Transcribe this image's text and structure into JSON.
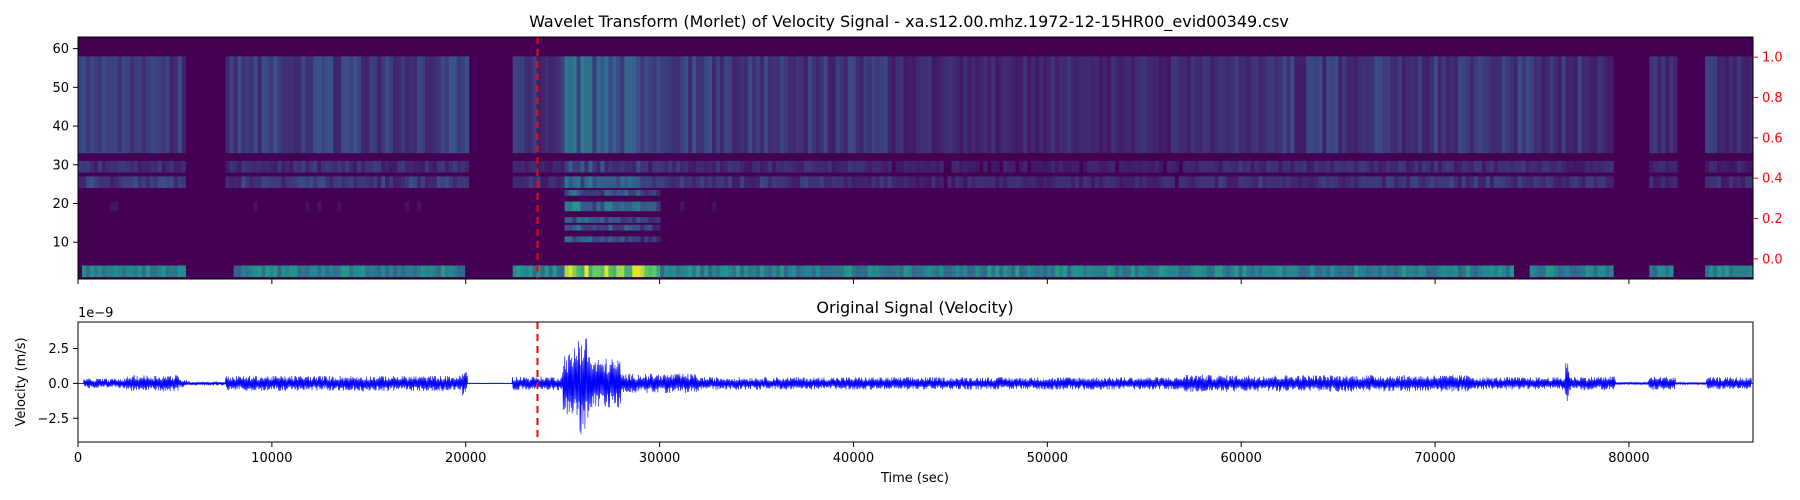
{
  "colors": {
    "background": "#440154",
    "heat_low": "#46337e",
    "heat_mid": "#21918c",
    "heat_high": "#fde725",
    "signal": "#0000ff",
    "event_line": "#ff0000",
    "right_axis": "#ff0000",
    "axis": "#000000"
  },
  "chart_data": [
    {
      "type": "heatmap",
      "title": "Wavelet Transform (Morlet) of Velocity Signal - xa.s12.00.mhz.1972-12-15HR00_evid00349.csv",
      "xlim": [
        0,
        86400
      ],
      "ylim": [
        0.5,
        63
      ],
      "yticks": [
        "10",
        "20",
        "30",
        "40",
        "50",
        "60"
      ],
      "ytick_values": [
        10,
        20,
        30,
        40,
        50,
        60
      ],
      "right_ylim": [
        -0.1,
        1.1
      ],
      "right_yticks": [
        "0.0",
        "0.2",
        "0.4",
        "0.6",
        "0.8",
        "1.0"
      ],
      "right_ytick_values": [
        0.0,
        0.2,
        0.4,
        0.6,
        0.8,
        1.0
      ],
      "colormap": "viridis",
      "event_time": 23700,
      "scale_bands": [
        {
          "low": 1,
          "high": 4,
          "weight": 0.45
        },
        {
          "low": 10,
          "high": 11.5,
          "weight": 0.12
        },
        {
          "low": 13,
          "high": 14.5,
          "weight": 0.14
        },
        {
          "low": 15,
          "high": 16.5,
          "weight": 0.14
        },
        {
          "low": 18,
          "high": 20.5,
          "weight": 0.18
        },
        {
          "low": 22,
          "high": 23.5,
          "weight": 0.14
        },
        {
          "low": 24,
          "high": 27,
          "weight": 0.3
        },
        {
          "low": 28,
          "high": 31,
          "weight": 0.24
        },
        {
          "low": 33,
          "high": 58,
          "weight": 0.32
        }
      ],
      "activity": [
        {
          "t0": 0,
          "t1": 5600,
          "level": 0.55
        },
        {
          "t0": 5600,
          "t1": 7600,
          "level": 0.1
        },
        {
          "t0": 7600,
          "t1": 20100,
          "level": 0.55
        },
        {
          "t0": 20100,
          "t1": 22400,
          "level": 0.03
        },
        {
          "t0": 22400,
          "t1": 25000,
          "level": 0.45
        },
        {
          "t0": 25000,
          "t1": 26500,
          "level": 1.0
        },
        {
          "t0": 26500,
          "t1": 29000,
          "level": 0.8
        },
        {
          "t0": 29000,
          "t1": 33000,
          "level": 0.55
        },
        {
          "t0": 33000,
          "t1": 42000,
          "level": 0.5
        },
        {
          "t0": 42000,
          "t1": 57900,
          "level": 0.35
        },
        {
          "t0": 57900,
          "t1": 74800,
          "level": 0.5
        },
        {
          "t0": 74800,
          "t1": 79300,
          "level": 0.45
        },
        {
          "t0": 79300,
          "t1": 81000,
          "level": 0.05
        },
        {
          "t0": 81000,
          "t1": 82500,
          "level": 0.4
        },
        {
          "t0": 82500,
          "t1": 83900,
          "level": 0.05
        },
        {
          "t0": 83900,
          "t1": 86400,
          "level": 0.45
        }
      ],
      "low_scale_active": [
        [
          300,
          5600
        ],
        [
          8000,
          20000
        ],
        [
          22400,
          33000
        ],
        [
          33000,
          42000
        ],
        [
          40800,
          48300
        ],
        [
          48300,
          58000
        ],
        [
          58000,
          74000
        ],
        [
          74800,
          79200
        ],
        [
          81000,
          82300
        ],
        [
          84000,
          86400
        ]
      ],
      "mid_scale_only_event": [
        25000,
        30000
      ]
    },
    {
      "type": "line",
      "title": "Original Signal (Velocity)",
      "xlabel": "Time (sec)",
      "ylabel": "Velocity (m/s)",
      "offset_label": "1e−9",
      "xlim": [
        0,
        86400
      ],
      "ylim": [
        -4.2,
        4.4
      ],
      "xticks": [
        "0",
        "10000",
        "20000",
        "30000",
        "40000",
        "50000",
        "60000",
        "70000",
        "80000"
      ],
      "xtick_values": [
        0,
        10000,
        20000,
        30000,
        40000,
        50000,
        60000,
        70000,
        80000
      ],
      "yticks": [
        "−2.5",
        "0.0",
        "2.5"
      ],
      "ytick_values": [
        -2.5,
        0.0,
        2.5
      ],
      "event_time": 23700,
      "envelope": [
        {
          "t0": 300,
          "t1": 2500,
          "amp": 0.35
        },
        {
          "t0": 2500,
          "t1": 5200,
          "amp": 0.6
        },
        {
          "t0": 5200,
          "t1": 5600,
          "amp": 0.3
        },
        {
          "t0": 5600,
          "t1": 7600,
          "amp": 0.15
        },
        {
          "t0": 7600,
          "t1": 15800,
          "amp": 0.55
        },
        {
          "t0": 15800,
          "t1": 19800,
          "amp": 0.55
        },
        {
          "t0": 19800,
          "t1": 20100,
          "amp": 0.9
        },
        {
          "t0": 20100,
          "t1": 22400,
          "amp": 0.03
        },
        {
          "t0": 22400,
          "t1": 25000,
          "amp": 0.5
        },
        {
          "t0": 25000,
          "t1": 25600,
          "amp": 2.2
        },
        {
          "t0": 25600,
          "t1": 26400,
          "amp": 3.8
        },
        {
          "t0": 26400,
          "t1": 28000,
          "amp": 1.8
        },
        {
          "t0": 28000,
          "t1": 32000,
          "amp": 0.7
        },
        {
          "t0": 32000,
          "t1": 57000,
          "amp": 0.45
        },
        {
          "t0": 57000,
          "t1": 58300,
          "amp": 0.65
        },
        {
          "t0": 58300,
          "t1": 72000,
          "amp": 0.6
        },
        {
          "t0": 72000,
          "t1": 76700,
          "amp": 0.45
        },
        {
          "t0": 76700,
          "t1": 76900,
          "amp": 1.9
        },
        {
          "t0": 76900,
          "t1": 79300,
          "amp": 0.5
        },
        {
          "t0": 79300,
          "t1": 81000,
          "amp": 0.1
        },
        {
          "t0": 81000,
          "t1": 82400,
          "amp": 0.5
        },
        {
          "t0": 82400,
          "t1": 84000,
          "amp": 0.08
        },
        {
          "t0": 84000,
          "t1": 86300,
          "amp": 0.45
        }
      ]
    }
  ]
}
